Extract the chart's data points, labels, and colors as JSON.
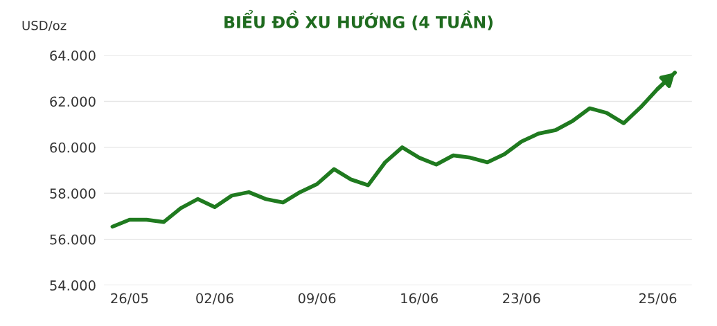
{
  "chart_data": {
    "type": "line",
    "title": "BIỂU ĐỒ XU HƯỚNG (4 TUẦN)",
    "ylabel": "USD/oz",
    "categories": [
      null,
      "26/05",
      null,
      null,
      null,
      null,
      "02/06",
      null,
      null,
      null,
      null,
      null,
      "09/06",
      null,
      null,
      null,
      null,
      null,
      "16/06",
      null,
      null,
      null,
      null,
      null,
      "23/06",
      null,
      null,
      null,
      null,
      null,
      null,
      null,
      "25/06",
      null
    ],
    "series": [
      {
        "color": "#1f7a1f",
        "values": [
          56550,
          56850,
          56850,
          56750,
          57350,
          57750,
          57400,
          57900,
          58050,
          57750,
          57600,
          58050,
          58400,
          59050,
          58600,
          58350,
          59350,
          60000,
          59550,
          59250,
          59650,
          59550,
          59350,
          59700,
          60250,
          60600,
          60750,
          61150,
          61700,
          61500,
          61050,
          61750,
          62550,
          63250
        ]
      }
    ],
    "ylim": [
      54000,
      64000
    ],
    "yticks": [
      {
        "value": 54000,
        "label": "54.000"
      },
      {
        "value": 56000,
        "label": "56.000"
      },
      {
        "value": 58000,
        "label": "58.000"
      },
      {
        "value": 60000,
        "label": "60.000"
      },
      {
        "value": 62000,
        "label": "62.000"
      },
      {
        "value": 64000,
        "label": "64.000"
      }
    ],
    "grid": "y",
    "marker": "none",
    "line_style": "solid"
  }
}
